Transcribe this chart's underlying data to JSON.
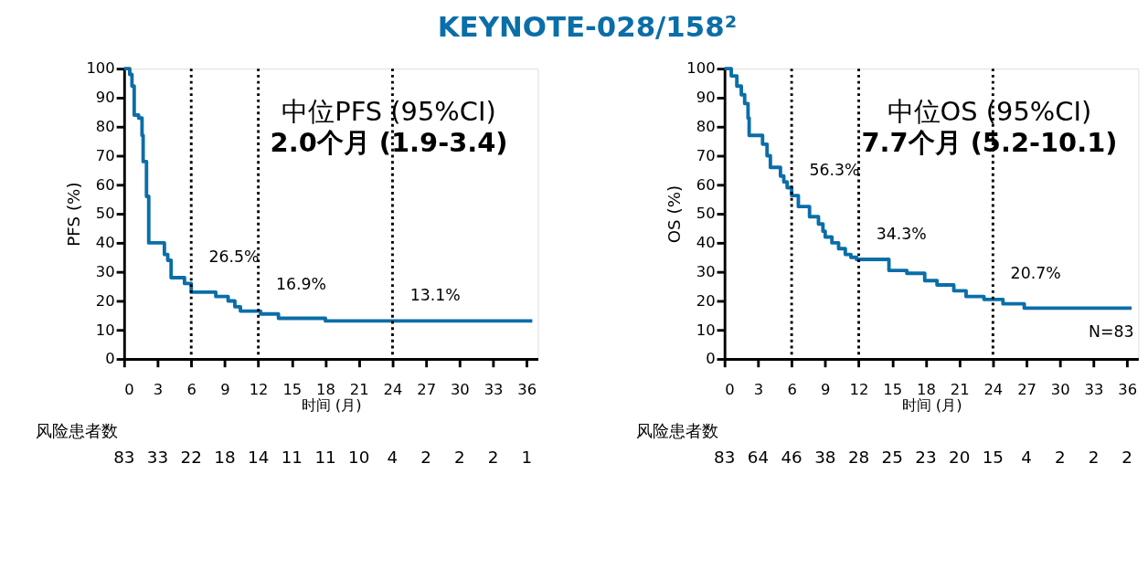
{
  "chart_data": [
    {
      "type": "step",
      "title": "中位PFS (95%CI)",
      "subtitle": "2.0个月 (1.9-3.4)",
      "xlabel": "时间 (月)",
      "ylabel": "PFS (%)",
      "x": [
        0,
        0.5,
        0.7,
        0.9,
        1.3,
        1.6,
        1.7,
        2.0,
        2.2,
        3.6,
        3.9,
        4.2,
        5.4,
        6.0,
        8.2,
        9.3,
        9.9,
        10.4,
        12.2,
        13.8,
        18.0,
        36.5
      ],
      "series": [
        {
          "color": "#0a6ea8",
          "values": [
            100,
            98,
            94,
            84,
            83,
            77,
            68,
            56,
            40,
            36,
            34,
            28,
            26,
            23,
            21.5,
            20,
            18,
            16.5,
            15.5,
            14,
            13.1,
            13.1
          ]
        }
      ],
      "xlim": [
        0,
        37
      ],
      "xticks": [
        0,
        3,
        6,
        9,
        12,
        15,
        18,
        21,
        24,
        27,
        30,
        33,
        36
      ],
      "ylim": [
        0,
        100
      ],
      "yticks": [
        0,
        10,
        20,
        30,
        40,
        50,
        60,
        70,
        80,
        90,
        100
      ],
      "grid": false,
      "marker": "none",
      "line_style": "solid",
      "ref_lines": [
        {
          "axis": "x",
          "value": 6,
          "color": "#000000",
          "line_style": "dotted"
        },
        {
          "axis": "x",
          "value": 12,
          "color": "#000000",
          "line_style": "dotted"
        },
        {
          "axis": "x",
          "value": 24,
          "color": "#000000",
          "line_style": "dotted"
        }
      ],
      "annotations": [
        "KEYNOTE-028/158²",
        "风险患者数",
        {
          "text": "26.5%",
          "x": 6,
          "y": 26.5
        },
        {
          "text": "16.9%",
          "x": 12,
          "y": 16.9
        },
        {
          "text": "13.1%",
          "x": 24,
          "y": 13.1
        },
        "83",
        "33",
        "22",
        "18",
        "14",
        "11",
        "11",
        "10",
        "4",
        "2",
        "2",
        "2",
        "1"
      ]
    },
    {
      "type": "step",
      "title": "中位OS (95%CI)",
      "subtitle": "7.7个月 (5.2-10.1)",
      "xlabel": "时间 (月)",
      "ylabel": "OS (%)",
      "x": [
        0,
        0.6,
        1.1,
        1.5,
        1.8,
        2.1,
        2.2,
        3.4,
        3.8,
        4.1,
        5.0,
        5.3,
        5.6,
        6.0,
        6.6,
        7.6,
        8.4,
        8.8,
        9.0,
        9.6,
        10.2,
        10.8,
        11.3,
        11.8,
        14.7,
        16.3,
        17.9,
        19.0,
        20.5,
        21.6,
        23.2,
        24.9,
        26.8,
        36.4
      ],
      "series": [
        {
          "color": "#0a6ea8",
          "values": [
            100,
            97.5,
            94,
            91,
            88,
            83,
            77,
            74,
            70,
            66,
            63,
            61,
            59,
            56.3,
            52.5,
            49,
            46.5,
            44,
            42,
            40,
            38,
            36,
            35,
            34.3,
            30.5,
            29.5,
            27,
            25.5,
            23.5,
            21.5,
            20.5,
            19,
            17.5,
            17.5
          ]
        }
      ],
      "xlim": [
        0,
        37
      ],
      "xticks": [
        0,
        3,
        6,
        9,
        12,
        15,
        18,
        21,
        24,
        27,
        30,
        33,
        36
      ],
      "ylim": [
        0,
        100
      ],
      "yticks": [
        0,
        10,
        20,
        30,
        40,
        50,
        60,
        70,
        80,
        90,
        100
      ],
      "grid": false,
      "marker": "none",
      "line_style": "solid",
      "ref_lines": [
        {
          "axis": "x",
          "value": 6,
          "color": "#000000",
          "line_style": "dotted"
        },
        {
          "axis": "x",
          "value": 12,
          "color": "#000000",
          "line_style": "dotted"
        },
        {
          "axis": "x",
          "value": 24,
          "color": "#000000",
          "line_style": "dotted"
        }
      ],
      "annotations": [
        "N=83",
        "风险患者数",
        {
          "text": "56.3%",
          "x": 6,
          "y": 56.3
        },
        {
          "text": "34.3%",
          "x": 12,
          "y": 34.3
        },
        {
          "text": "20.7%",
          "x": 24,
          "y": 20.7
        },
        "83",
        "64",
        "46",
        "38",
        "28",
        "25",
        "23",
        "20",
        "15",
        "4",
        "2",
        "2",
        "2"
      ]
    }
  ]
}
